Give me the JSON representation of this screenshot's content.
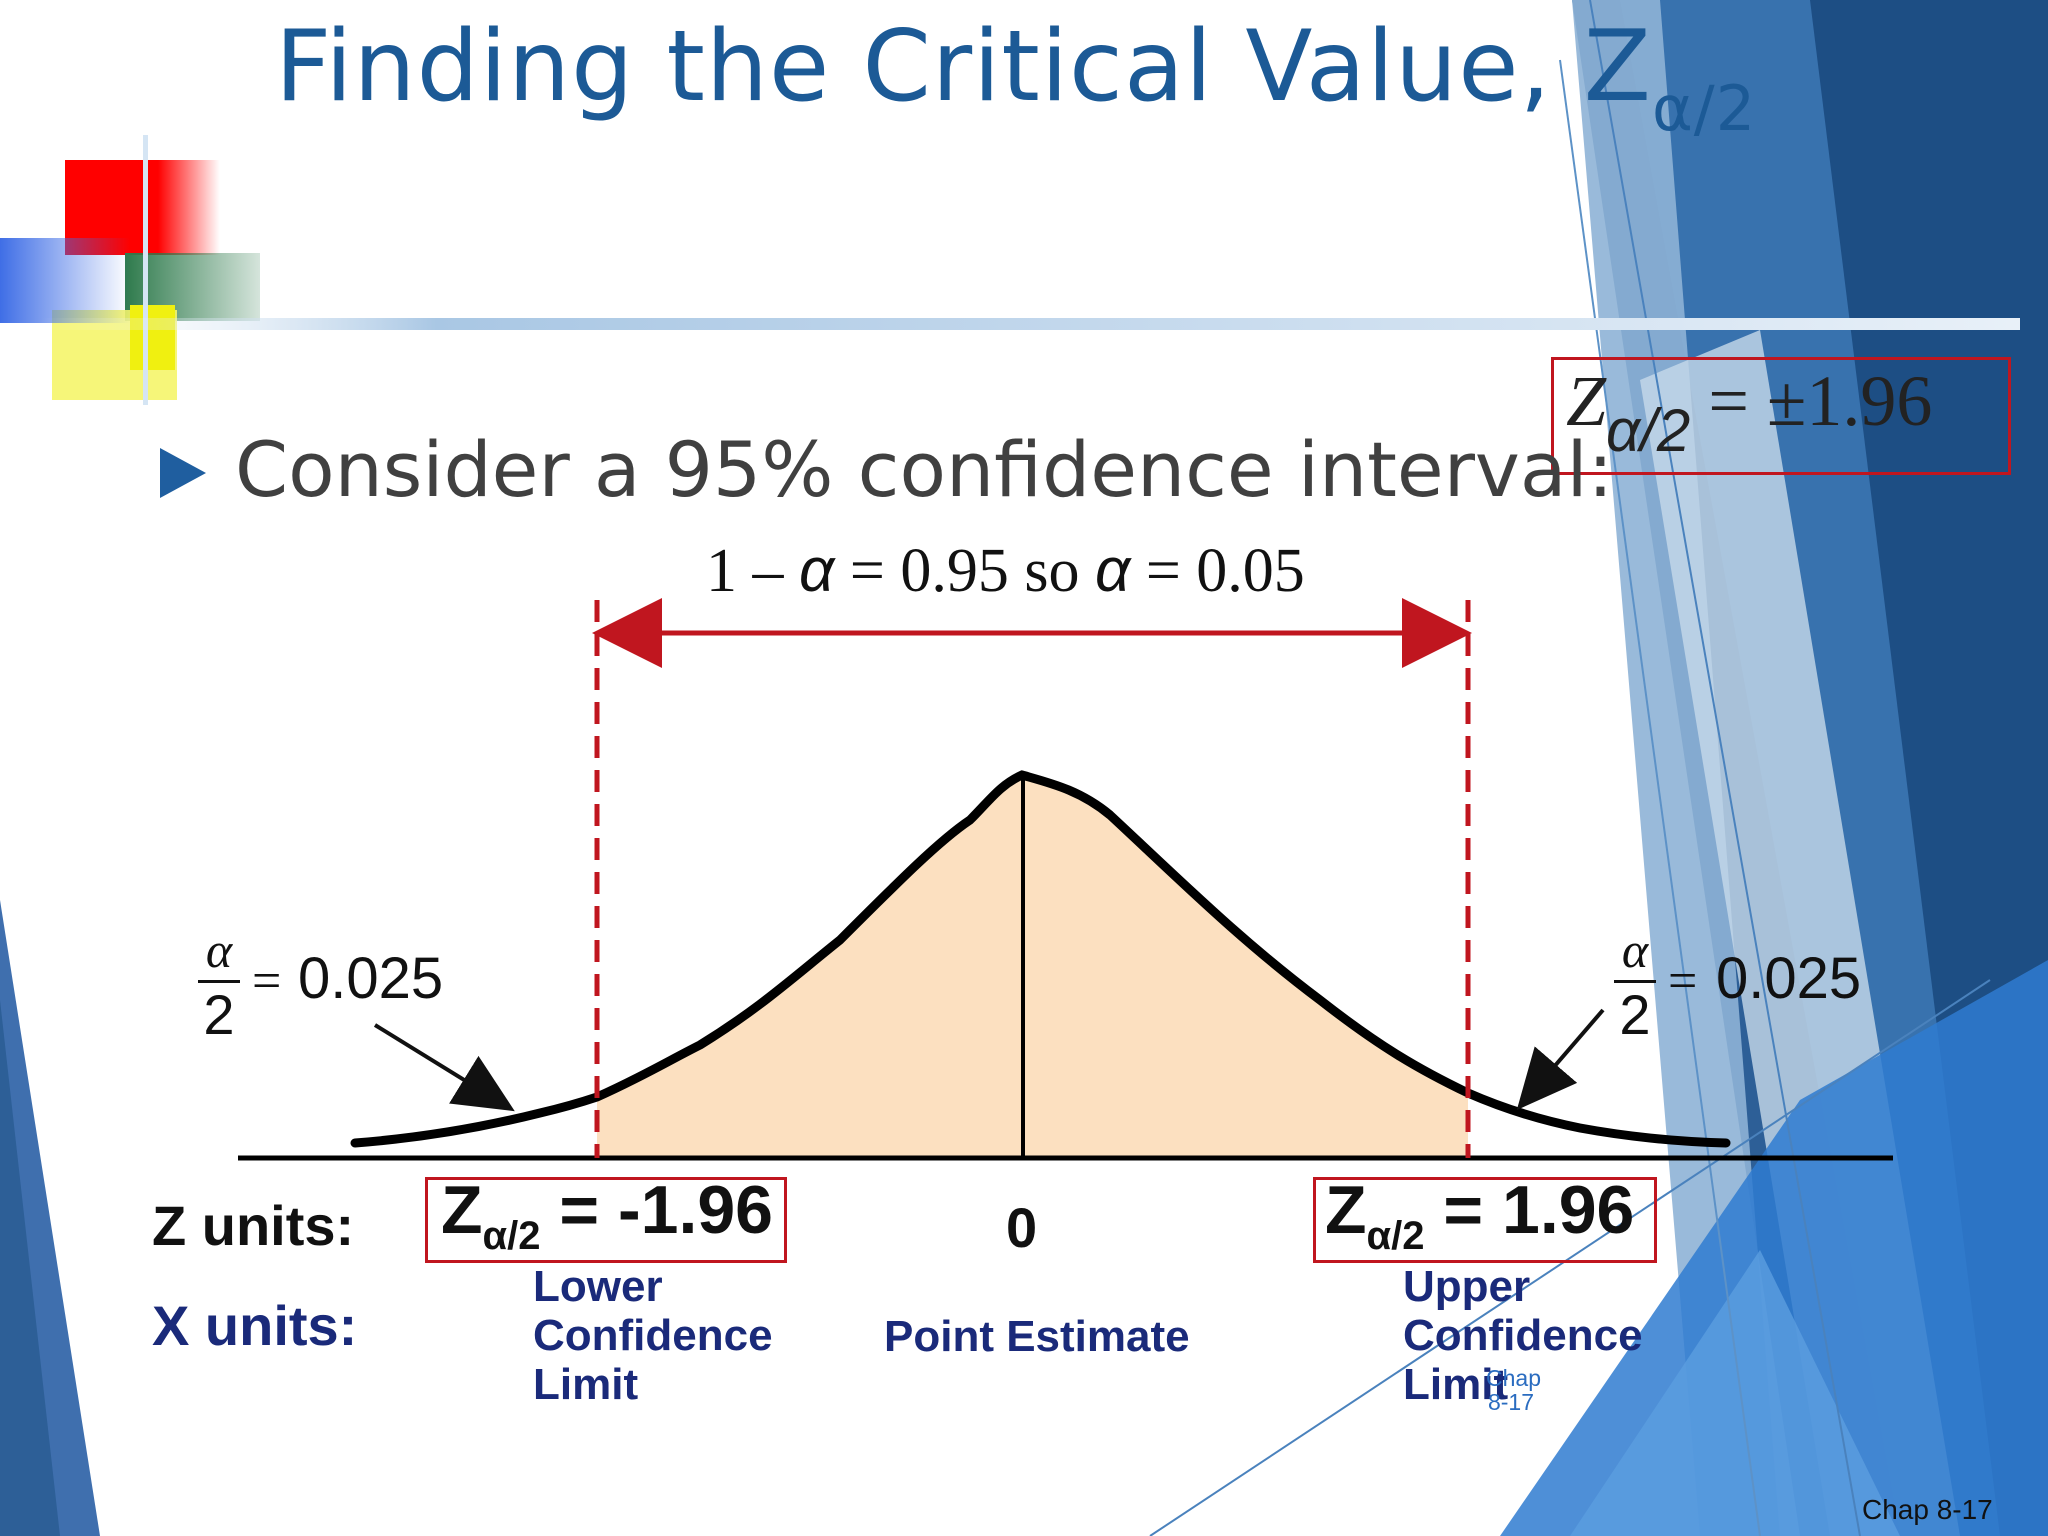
{
  "slide": {
    "title_main": "Finding the Critical Value, Z",
    "title_sub": "α/2",
    "bullet": "Consider a 95% confidence interval:",
    "equation_box": {
      "z": "Z",
      "sub": "α/2",
      "value": " = ±1.96"
    },
    "alpha_line": {
      "p1": "1 – ",
      "a1": "α",
      "p2": " = 0.95 so ",
      "a2": "α",
      "p3": " = 0.05"
    },
    "tail_left": {
      "num": "α",
      "den": "2",
      "eq": "=",
      "value": "0.025"
    },
    "tail_right": {
      "num": "α",
      "den": "2",
      "eq": "=",
      "value": "0.025"
    },
    "z_units_label": "Z units:",
    "x_units_label": "X units:",
    "z_left": {
      "z": "Z",
      "sub": "α/2",
      "value": " = -1.96"
    },
    "z_center": "0",
    "z_right": {
      "z": "Z",
      "sub": "α/2",
      "value": " = 1.96"
    },
    "x_left": "Lower Confidence Limit",
    "x_center": "Point Estimate",
    "x_right": "Upper Confidence Limit",
    "slide_number": "Chap 8-17",
    "footer": "Chap 8-17"
  },
  "colors": {
    "title": "#1c5a96",
    "accent_red": "#c0161f",
    "fill_area": "#fce0c0",
    "x_units_text": "#1a2a7a"
  },
  "icons": {
    "bullet": "triangle-right-icon"
  }
}
